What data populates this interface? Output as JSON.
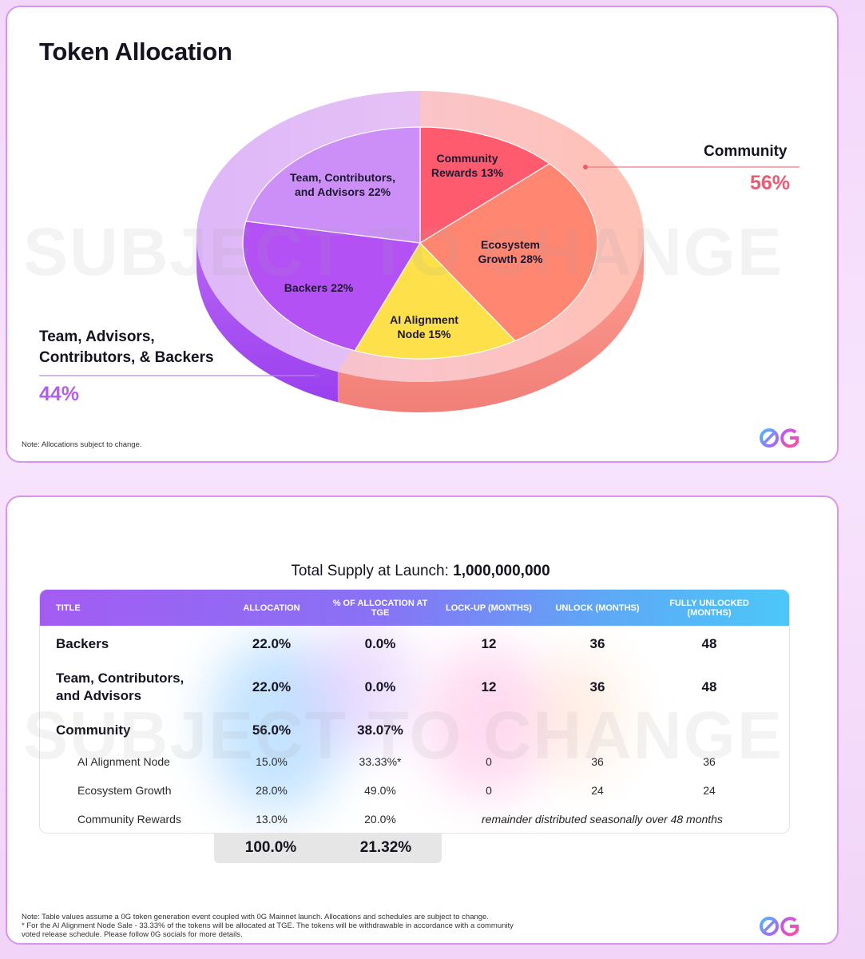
{
  "chart_data": {
    "type": "pie",
    "title": "Token Allocation",
    "slices": [
      {
        "label": "Community Rewards 13%",
        "value": 13,
        "color": "#ff5b6e"
      },
      {
        "label": "Ecosystem Growth 28%",
        "value": 28,
        "color": "#ff8670"
      },
      {
        "label": "AI Alignment Node 15%",
        "value": 15,
        "color": "#fde04a"
      },
      {
        "label": "Backers 22%",
        "value": 22,
        "color": "#b451f5"
      },
      {
        "label": "Team, Contributors, and Advisors 22%",
        "value": 22,
        "color": "#cc8ff7"
      }
    ],
    "outer_ring": [
      {
        "name": "Community",
        "percent": "56%",
        "value": 56,
        "color": "#ffb0a8"
      },
      {
        "name": "Team, Advisors, Contributors, & Backers",
        "percent": "44%",
        "value": 44,
        "color": "#d8a9f6"
      }
    ]
  },
  "card1": {
    "title": "Token Allocation",
    "watermark": "SUBJECT TO CHANGE",
    "labels": {
      "community_rewards": [
        "Community",
        "Rewards 13%"
      ],
      "ecosystem": [
        "Ecosystem",
        "Growth 28%"
      ],
      "ai_node": [
        "AI Alignment",
        "Node 15%"
      ],
      "backers": [
        "Backers 22%"
      ],
      "team": [
        "Team, Contributors,",
        "and Advisors 22%"
      ]
    },
    "community_callout": {
      "name": "Community",
      "pct": "56%"
    },
    "team_callout": {
      "line1": "Team, Advisors,",
      "line2": "Contributors, & Backers",
      "pct": "44%"
    },
    "note": "Note: Allocations subject to change.",
    "colors": {
      "community": "#ee5a6f",
      "team": "#b45ef0"
    }
  },
  "card2": {
    "supply_label": "Total Supply at Launch: ",
    "supply_value": "1,000,000,000",
    "watermark": "SUBJECT TO CHANGE",
    "headers": [
      "TITLE",
      "ALLOCATION",
      "% OF ALLOCATION AT TGE",
      "LOCK-UP (MONTHS)",
      "UNLOCK (MONTHS)",
      "FULLY UNLOCKED (MONTHS)"
    ],
    "rows": [
      {
        "title": "Backers",
        "allocation": "22.0%",
        "tge": "0.0%",
        "lockup": "12",
        "unlock": "36",
        "full": "48"
      },
      {
        "title": "Team, Contributors, and Advisors",
        "allocation": "22.0%",
        "tge": "0.0%",
        "lockup": "12",
        "unlock": "36",
        "full": "48"
      },
      {
        "title": "Community",
        "allocation": "56.0%",
        "tge": "38.07%",
        "lockup": "",
        "unlock": "",
        "full": ""
      }
    ],
    "subrows": [
      {
        "title": "AI Alignment Node",
        "allocation": "15.0%",
        "tge": "33.33%*",
        "lockup": "0",
        "unlock": "36",
        "full": "36"
      },
      {
        "title": "Ecosystem Growth",
        "allocation": "28.0%",
        "tge": "49.0%",
        "lockup": "0",
        "unlock": "24",
        "full": "24"
      },
      {
        "title": "Community Rewards",
        "allocation": "13.0%",
        "tge": "20.0%",
        "note": "remainder distributed seasonally over 48 months"
      }
    ],
    "totals": {
      "allocation": "100.0%",
      "tge": "21.32%"
    },
    "footnote": [
      "Note: Table values assume a 0G token generation event coupled with 0G Mainnet launch. Allocations and schedules are subject to change.",
      "* For the AI Alignment Node Sale - 33.33% of the tokens will be allocated at TGE. The tokens will be withdrawable in accordance with a community",
      "voted release schedule. Please follow 0G socials for more details."
    ]
  }
}
